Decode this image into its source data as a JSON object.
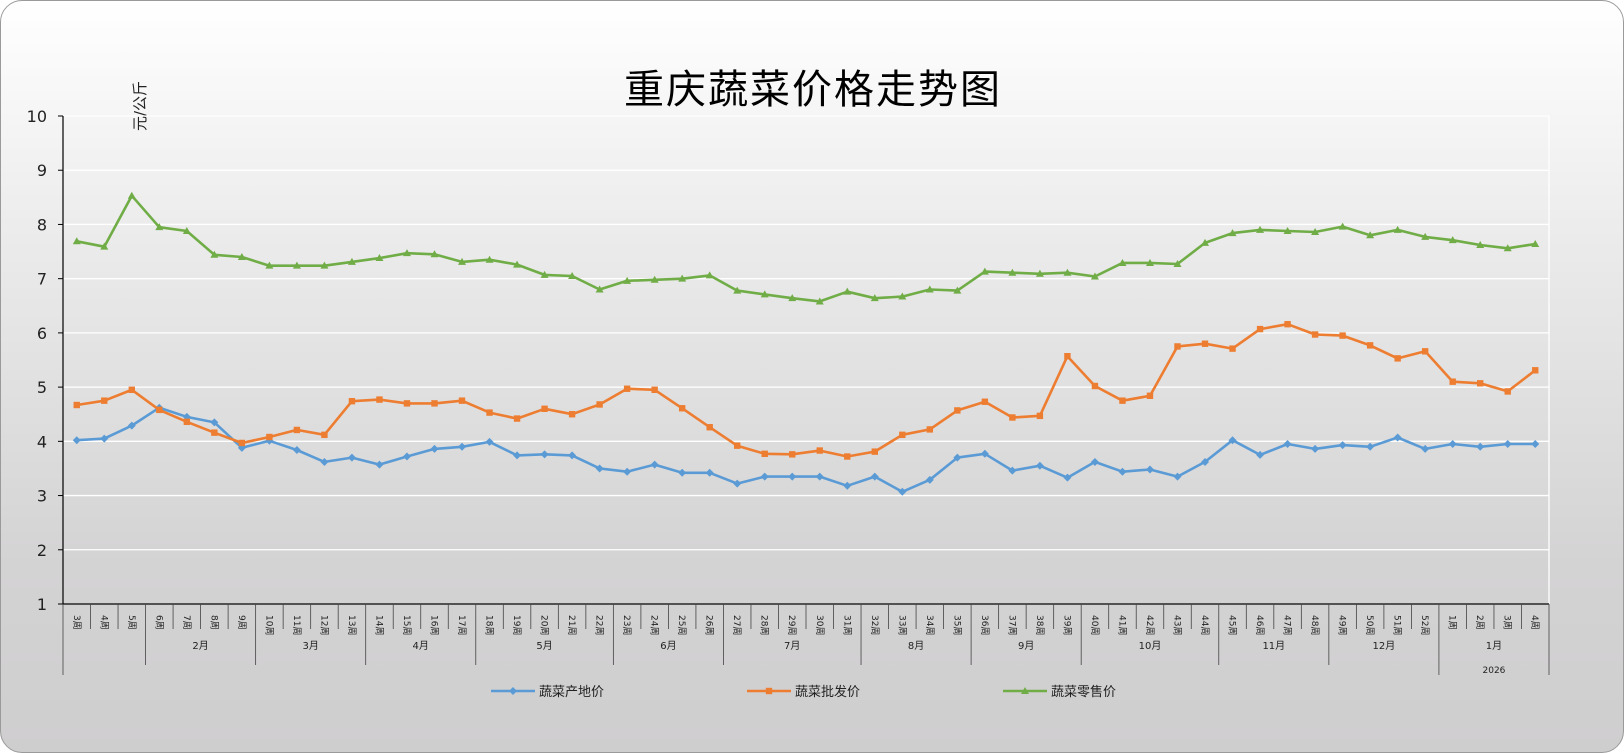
{
  "chart_data": {
    "type": "line",
    "title": "重庆蔬菜价格走势图",
    "ylabel": "元/公斤",
    "ylim": [
      1,
      10
    ],
    "yticks": [
      1,
      2,
      3,
      4,
      5,
      6,
      7,
      8,
      9,
      10
    ],
    "grid": true,
    "legend_position": "bottom",
    "categories": [
      "3周",
      "4周",
      "5周",
      "6周",
      "7周",
      "8周",
      "9周",
      "10周",
      "11周",
      "12周",
      "13周",
      "14周",
      "15周",
      "16周",
      "17周",
      "18周",
      "19周",
      "20周",
      "21周",
      "22周",
      "23周",
      "24周",
      "25周",
      "26周",
      "27周",
      "28周",
      "29周",
      "30周",
      "31周",
      "32周",
      "33周",
      "34周",
      "35周",
      "36周",
      "37周",
      "38周",
      "39周",
      "40周",
      "41周",
      "42周",
      "43周",
      "44周",
      "45周",
      "46周",
      "47周",
      "48周",
      "49周",
      "50周",
      "51周",
      "52周",
      "1周",
      "2周",
      "3周",
      "4周"
    ],
    "month_groups": [
      {
        "label": "",
        "count": 3
      },
      {
        "label": "2月",
        "count": 4
      },
      {
        "label": "3月",
        "count": 4
      },
      {
        "label": "4月",
        "count": 4
      },
      {
        "label": "5月",
        "count": 5
      },
      {
        "label": "6月",
        "count": 4
      },
      {
        "label": "7月",
        "count": 5
      },
      {
        "label": "8月",
        "count": 4
      },
      {
        "label": "9月",
        "count": 4
      },
      {
        "label": "10月",
        "count": 5
      },
      {
        "label": "11月",
        "count": 4
      },
      {
        "label": "12月",
        "count": 4
      },
      {
        "label": "1月",
        "count": 4
      }
    ],
    "year_groups": [
      {
        "label": "",
        "count": 50
      },
      {
        "label": "2026",
        "count": 4
      }
    ],
    "series": [
      {
        "name": "蔬菜产地价",
        "color": "#5b9bd5",
        "marker": "diamond",
        "values": [
          4.02,
          4.05,
          4.29,
          4.62,
          4.45,
          4.35,
          3.88,
          4.01,
          3.84,
          3.62,
          3.7,
          3.57,
          3.72,
          3.86,
          3.9,
          3.99,
          3.74,
          3.76,
          3.74,
          3.5,
          3.44,
          3.57,
          3.42,
          3.42,
          3.22,
          3.35,
          3.35,
          3.35,
          3.18,
          3.35,
          3.07,
          3.29,
          3.7,
          3.77,
          3.46,
          3.55,
          3.33,
          3.62,
          3.44,
          3.48,
          3.35,
          3.62,
          4.02,
          3.75,
          3.95,
          3.86,
          3.93,
          3.9,
          4.07,
          3.86,
          3.95,
          3.9,
          3.95,
          3.95
        ]
      },
      {
        "name": "蔬菜批发价",
        "color": "#ed7d31",
        "marker": "square",
        "values": [
          4.67,
          4.75,
          4.95,
          4.58,
          4.36,
          4.16,
          3.97,
          4.08,
          4.21,
          4.12,
          4.74,
          4.77,
          4.7,
          4.7,
          4.75,
          4.53,
          4.42,
          4.6,
          4.5,
          4.68,
          4.97,
          4.95,
          4.61,
          4.26,
          3.92,
          3.77,
          3.76,
          3.83,
          3.72,
          3.81,
          4.12,
          4.22,
          4.57,
          4.73,
          4.44,
          4.47,
          5.57,
          5.02,
          4.75,
          4.84,
          5.75,
          5.8,
          5.71,
          6.07,
          6.16,
          5.97,
          5.95,
          5.77,
          5.53,
          5.66,
          5.1,
          5.07,
          4.92,
          5.31
        ]
      },
      {
        "name": "蔬菜零售价",
        "color": "#70ad47",
        "marker": "triangle",
        "values": [
          7.69,
          7.59,
          8.53,
          7.95,
          7.88,
          7.44,
          7.4,
          7.24,
          7.24,
          7.24,
          7.31,
          7.38,
          7.47,
          7.45,
          7.31,
          7.35,
          7.26,
          7.07,
          7.05,
          6.8,
          6.96,
          6.98,
          7.0,
          7.06,
          6.78,
          6.71,
          6.64,
          6.58,
          6.76,
          6.64,
          6.67,
          6.8,
          6.78,
          7.13,
          7.11,
          7.09,
          7.11,
          7.04,
          7.29,
          7.29,
          7.27,
          7.66,
          7.84,
          7.9,
          7.88,
          7.86,
          7.96,
          7.8,
          7.9,
          7.77,
          7.71,
          7.62,
          7.56,
          7.64
        ]
      }
    ]
  }
}
